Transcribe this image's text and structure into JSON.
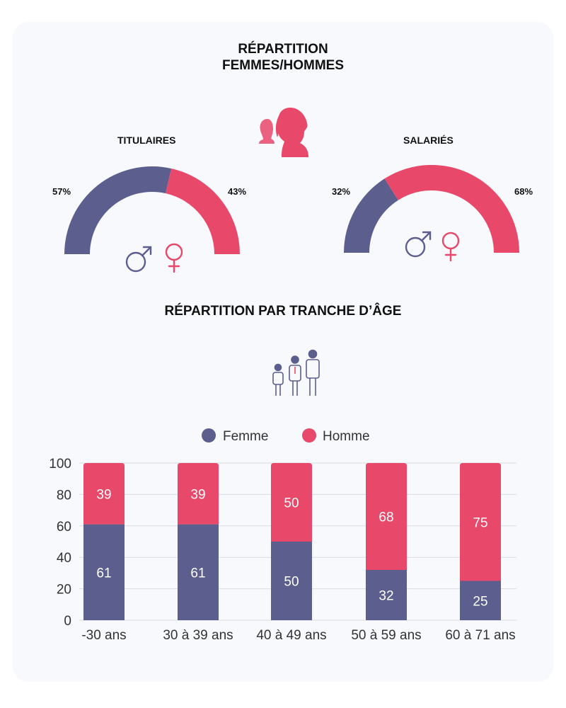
{
  "section_gender": {
    "title_line1": "RÉPARTITION",
    "title_line2": "FEMMES/HOMMES",
    "icon": "woman-man-silhouette-icon"
  },
  "gauges": [
    {
      "label": "TITULAIRES",
      "left_value": "57%",
      "right_value": "43%",
      "left_fraction": 0.57,
      "right_fraction": 0.43
    },
    {
      "label": "SALARIÉS",
      "left_value": "32%",
      "right_value": "68%",
      "left_fraction": 0.32,
      "right_fraction": 0.68
    }
  ],
  "gender_symbols": {
    "male": "♂",
    "female": "♀"
  },
  "section_age": {
    "title": "RÉPARTITION PAR TRANCHE D’ÂGE",
    "icon": "family-people-icon"
  },
  "colors": {
    "femme": "#5c5e8e",
    "homme": "#e8486a",
    "background_card": "#f7f9fc"
  },
  "chart_data": {
    "type": "bar",
    "stacked": true,
    "categories": [
      "-30 ans",
      "30 à 39 ans",
      "40 à 49 ans",
      "50 à 59 ans",
      "60 à 71 ans"
    ],
    "series": [
      {
        "name": "Femme",
        "values": [
          61,
          61,
          50,
          32,
          25
        ]
      },
      {
        "name": "Homme",
        "values": [
          39,
          39,
          50,
          68,
          75
        ]
      }
    ],
    "yticks": [
      "0",
      "20",
      "40",
      "60",
      "80",
      "100"
    ],
    "ylim": [
      0,
      100
    ],
    "legend": "top-center",
    "grid": true
  }
}
